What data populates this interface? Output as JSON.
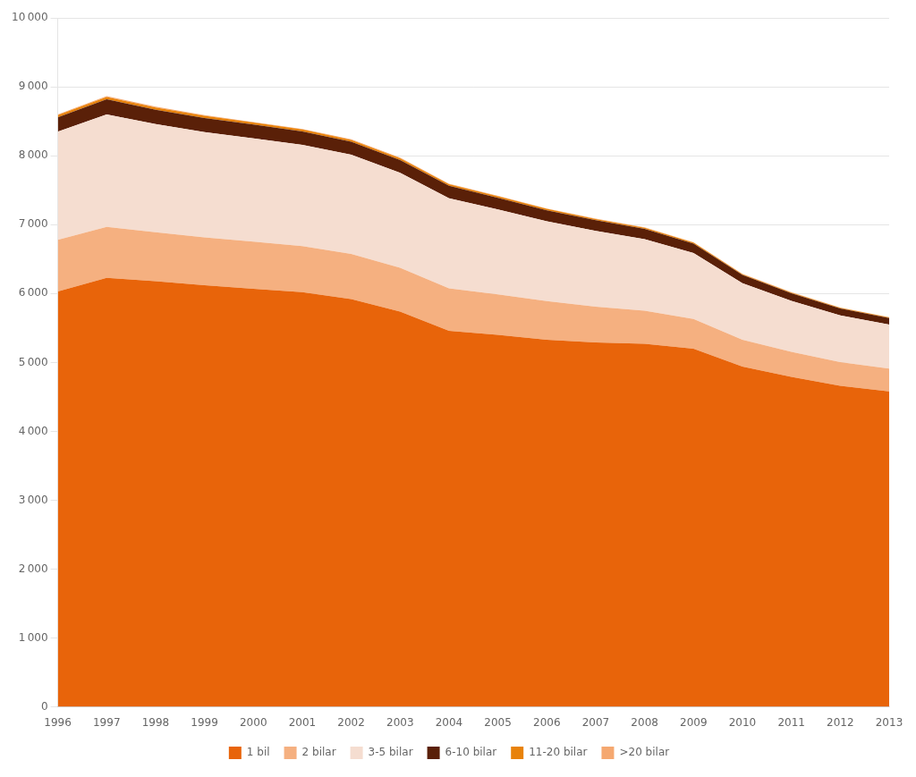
{
  "chart_data": {
    "type": "area",
    "stacked": true,
    "x": [
      1996,
      1997,
      1998,
      1999,
      2000,
      2001,
      2002,
      2003,
      2004,
      2005,
      2006,
      2007,
      2008,
      2009,
      2010,
      2011,
      2012,
      2013
    ],
    "series": [
      {
        "name": "1 bil",
        "color": "#E8640A",
        "values": [
          6030,
          6230,
          6180,
          6120,
          6070,
          6020,
          5920,
          5740,
          5460,
          5400,
          5330,
          5290,
          5270,
          5200,
          4940,
          4790,
          4660,
          4580
        ]
      },
      {
        "name": "2 bilar",
        "color": "#F5B080",
        "values": [
          750,
          740,
          710,
          695,
          685,
          670,
          655,
          635,
          615,
          590,
          560,
          520,
          480,
          430,
          390,
          365,
          345,
          330
        ]
      },
      {
        "name": "3-5 bilar",
        "color": "#F5DDD0",
        "values": [
          1570,
          1630,
          1570,
          1530,
          1500,
          1470,
          1440,
          1380,
          1310,
          1230,
          1160,
          1100,
          1040,
          960,
          820,
          740,
          680,
          640
        ]
      },
      {
        "name": "6-10 bilar",
        "color": "#5A2008",
        "values": [
          210,
          220,
          210,
          205,
          200,
          195,
          190,
          185,
          180,
          170,
          160,
          155,
          150,
          135,
          120,
          110,
          100,
          95
        ]
      },
      {
        "name": "11-20 bilar",
        "color": "#E8820A",
        "values": [
          30,
          35,
          32,
          30,
          28,
          27,
          26,
          25,
          24,
          22,
          20,
          18,
          17,
          15,
          12,
          11,
          10,
          9
        ]
      },
      {
        "name": ">20 bilar",
        "color": "#F5A870",
        "values": [
          10,
          12,
          11,
          10,
          9,
          9,
          8,
          8,
          7,
          7,
          6,
          6,
          5,
          5,
          4,
          4,
          3,
          3
        ]
      }
    ],
    "xlim": [
      1996,
      2013
    ],
    "xticks": [
      1996,
      1997,
      1998,
      1999,
      2000,
      2001,
      2002,
      2003,
      2004,
      2005,
      2006,
      2007,
      2008,
      2009,
      2010,
      2011,
      2012,
      2013
    ],
    "ylim": [
      0,
      10000
    ],
    "yticks": [
      0,
      {
        "value": 1000,
        "label": "1 000"
      },
      {
        "value": 2000,
        "label": "2 000"
      },
      {
        "value": 3000,
        "label": "3 000"
      },
      {
        "value": 4000,
        "label": "4 000"
      },
      {
        "value": 5000,
        "label": "5 000"
      },
      {
        "value": 6000,
        "label": "6 000"
      },
      {
        "value": 7000,
        "label": "7 000"
      },
      {
        "value": 8000,
        "label": "8 000"
      },
      {
        "value": 9000,
        "label": "9 000"
      },
      {
        "value": 10000,
        "label": "10 000"
      }
    ],
    "grid": "y",
    "legend": "bottom"
  }
}
